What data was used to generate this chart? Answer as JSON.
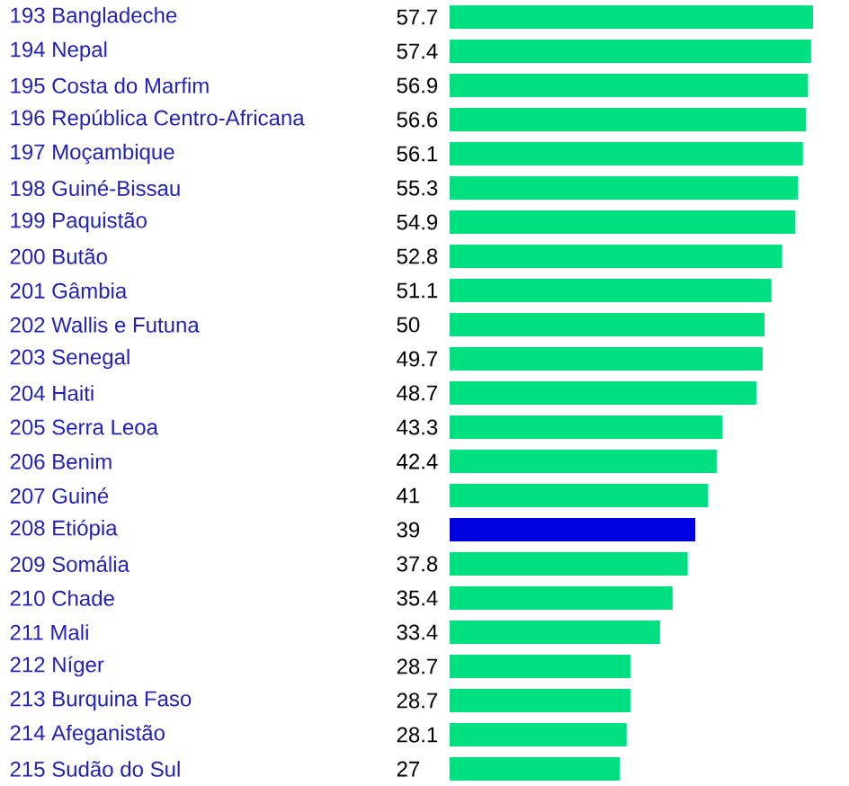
{
  "chart_data": {
    "type": "bar",
    "orientation": "horizontal",
    "data_labels": true,
    "categories": [
      "193 Bangladeche",
      "194 Nepal",
      "195 Costa do Marfim",
      "196 República Centro-Africana",
      "197 Moçambique",
      "198 Guiné-Bissau",
      "199 Paquistão",
      "200 Butão",
      "201 Gâmbia",
      "202 Wallis e Futuna",
      "203 Senegal",
      "204 Haiti",
      "205 Serra Leoa",
      "206 Benim",
      "207 Guiné",
      "208 Etiópia",
      "209 Somália",
      "210 Chade",
      "211 Mali",
      "212 Níger",
      "213 Burquina Faso",
      "214 Afeganistão",
      "215 Sudão do Sul"
    ],
    "values": [
      57.7,
      57.4,
      56.9,
      56.6,
      56.1,
      55.3,
      54.9,
      52.8,
      51.1,
      50,
      49.7,
      48.7,
      43.3,
      42.4,
      41,
      39,
      37.8,
      35.4,
      33.4,
      28.7,
      28.7,
      28.1,
      27
    ],
    "colors": [
      "#00e080",
      "#00e080",
      "#00e080",
      "#00e080",
      "#00e080",
      "#00e080",
      "#00e080",
      "#00e080",
      "#00e080",
      "#00e080",
      "#00e080",
      "#00e080",
      "#00e080",
      "#00e080",
      "#00e080",
      "#0000e0",
      "#00e080",
      "#00e080",
      "#00e080",
      "#00e080",
      "#00e080",
      "#00e080",
      "#00e080"
    ]
  }
}
